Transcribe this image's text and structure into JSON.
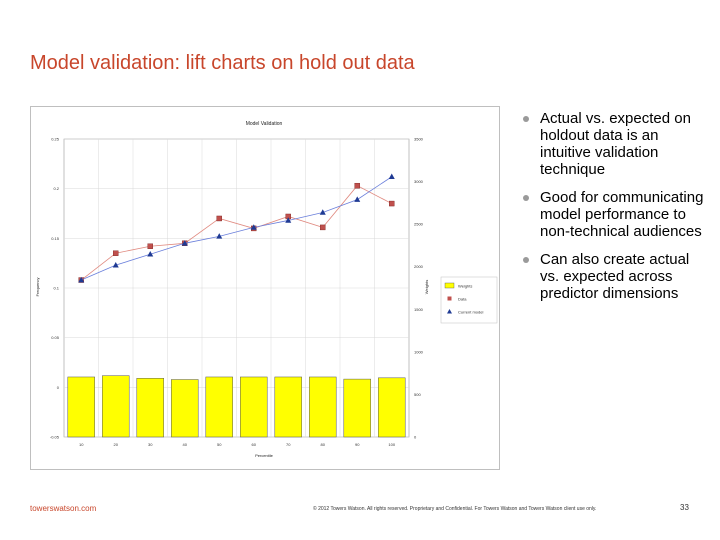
{
  "slide": {
    "title": "Model validation: lift charts on hold out data",
    "bullets": [
      "Actual vs. expected on holdout data is an intuitive validation technique",
      "Good for communicating model performance to non-technical audiences",
      "Can also create actual vs. expected across predictor dimensions"
    ],
    "footer_left": "towerswatson.com",
    "footer_center": "© 2012 Towers Watson. All rights reserved. Proprietary and Confidential. For Towers Watson and Towers Watson client use only.",
    "page_number": "33"
  },
  "colors": {
    "title": "#c8462b",
    "weights_bar": "#ffff00",
    "data_series": "#c0504d",
    "model_series": "#1f3a93",
    "model_line": "#6a7fdb"
  },
  "chart_data": {
    "type": "bar",
    "title": "Model Validation",
    "xlabel": "Percentile",
    "ylabel": "Frequency",
    "y2label": "Weights",
    "categories": [
      "10",
      "20",
      "30",
      "40",
      "50",
      "60",
      "70",
      "80",
      "90",
      "100"
    ],
    "ylim": [
      -0.05,
      0.25
    ],
    "yticks": [
      "-0.05",
      "0",
      "0.05",
      "0.1",
      "0.15",
      "0.2",
      "0.25"
    ],
    "y2lim": [
      0,
      3500
    ],
    "y2ticks": [
      "0",
      "500",
      "1000",
      "1500",
      "2000",
      "2500",
      "3000",
      "3500"
    ],
    "grid": true,
    "legend_position": "right",
    "series": [
      {
        "name": "Weights",
        "kind": "bar",
        "axis": "right",
        "values": [
          705,
          720,
          690,
          675,
          705,
          705,
          705,
          705,
          680,
          695
        ]
      },
      {
        "name": "Data",
        "kind": "line",
        "axis": "left",
        "marker": "square",
        "values": [
          0.108,
          0.135,
          0.142,
          0.145,
          0.17,
          0.16,
          0.172,
          0.161,
          0.203,
          0.185
        ]
      },
      {
        "name": "Current model",
        "kind": "line",
        "axis": "left",
        "marker": "triangle",
        "values": [
          0.108,
          0.123,
          0.134,
          0.145,
          0.152,
          0.161,
          0.168,
          0.176,
          0.189,
          0.212
        ]
      }
    ]
  }
}
